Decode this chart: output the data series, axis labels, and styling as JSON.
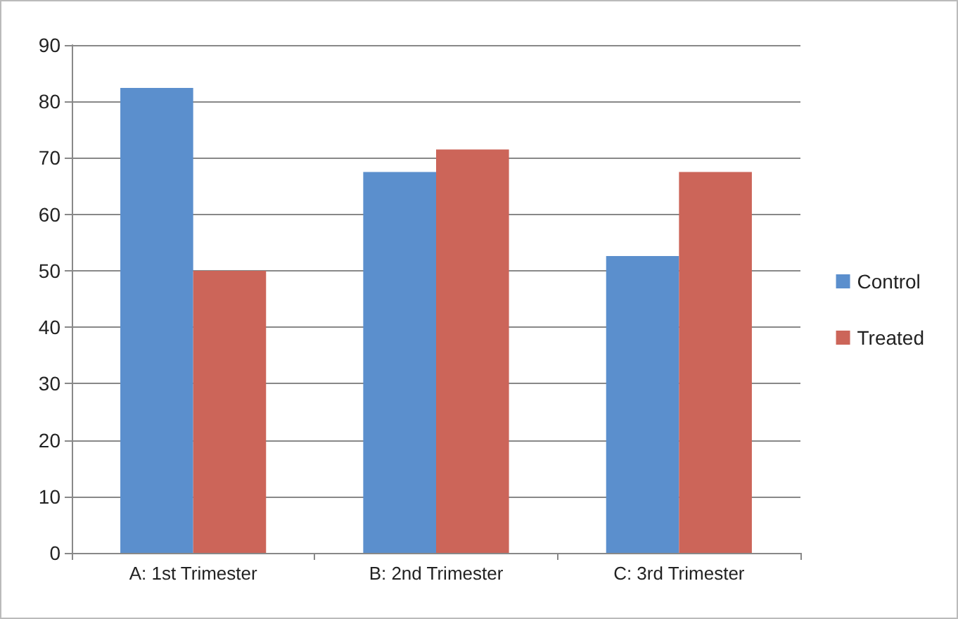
{
  "chart_data": {
    "type": "bar",
    "categories": [
      "A: 1st Trimester",
      "B: 2nd Trimester",
      "C: 3rd Trimester"
    ],
    "series": [
      {
        "name": "Control",
        "color": "#5b8fcd",
        "values": [
          82.4,
          67.5,
          52.6
        ]
      },
      {
        "name": "Treated",
        "color": "#cc6559",
        "values": [
          50,
          71.5,
          67.5
        ]
      }
    ],
    "ylim": [
      0,
      90
    ],
    "yticks": [
      0,
      10,
      20,
      30,
      40,
      50,
      60,
      70,
      80,
      90
    ],
    "grid": "y",
    "legend": "right"
  }
}
